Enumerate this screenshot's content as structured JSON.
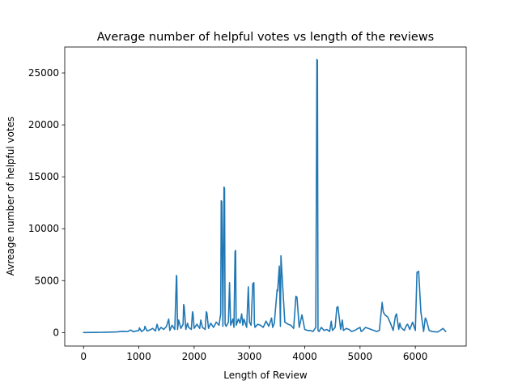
{
  "chart_data": {
    "type": "line",
    "title": "Average number of helpful votes vs length of the reviews",
    "xlabel": "Length of Review",
    "ylabel": "Avreage number of helpful votes",
    "xlim": [
      -340,
      6920
    ],
    "ylim": [
      -1300,
      27500
    ],
    "xticks": [
      0,
      1000,
      2000,
      3000,
      4000,
      5000,
      6000
    ],
    "xtick_labels": [
      "0",
      "1000",
      "2000",
      "3000",
      "4000",
      "5000",
      "6000"
    ],
    "yticks": [
      0,
      5000,
      10000,
      15000,
      20000,
      25000
    ],
    "ytick_labels": [
      "0",
      "5000",
      "10000",
      "15000",
      "20000",
      "25000"
    ],
    "grid": false,
    "legend": false,
    "colors": {
      "line": "#1f77b4"
    },
    "series": [
      {
        "x": [
          0,
          200,
          400,
          600,
          700,
          800,
          850,
          900,
          950,
          1000,
          1010,
          1050,
          1100,
          1110,
          1150,
          1200,
          1250,
          1300,
          1330,
          1360,
          1400,
          1450,
          1500,
          1540,
          1560,
          1600,
          1650,
          1680,
          1685,
          1700,
          1720,
          1760,
          1800,
          1810,
          1820,
          1850,
          1880,
          1900,
          1950,
          1970,
          1980,
          2000,
          2050,
          2100,
          2120,
          2150,
          2200,
          2220,
          2230,
          2260,
          2300,
          2350,
          2400,
          2450,
          2480,
          2490,
          2500,
          2520,
          2540,
          2550,
          2560,
          2580,
          2620,
          2640,
          2660,
          2700,
          2720,
          2740,
          2750,
          2760,
          2800,
          2830,
          2860,
          2880,
          2900,
          2950,
          2980,
          3000,
          3030,
          3060,
          3080,
          3090,
          3100,
          3150,
          3200,
          3250,
          3300,
          3350,
          3400,
          3420,
          3450,
          3500,
          3510,
          3540,
          3560,
          3570,
          3600,
          3640,
          3700,
          3750,
          3800,
          3840,
          3860,
          3900,
          3950,
          4000,
          4050,
          4100,
          4150,
          4200,
          4220,
          4230,
          4240,
          4260,
          4300,
          4350,
          4400,
          4450,
          4480,
          4500,
          4550,
          4580,
          4600,
          4650,
          4680,
          4700,
          4750,
          4800,
          4850,
          4900,
          5000,
          5020,
          5050,
          5100,
          5200,
          5300,
          5350,
          5400,
          5420,
          5450,
          5500,
          5550,
          5600,
          5640,
          5660,
          5700,
          5720,
          5740,
          5800,
          5840,
          5860,
          5900,
          5950,
          6000,
          6030,
          6060,
          6100,
          6150,
          6180,
          6200,
          6250,
          6300,
          6400,
          6450,
          6500,
          6550
        ],
        "y": [
          0,
          10,
          30,
          60,
          120,
          100,
          250,
          80,
          150,
          200,
          450,
          100,
          300,
          600,
          150,
          250,
          400,
          150,
          800,
          200,
          500,
          300,
          600,
          1300,
          200,
          700,
          300,
          5500,
          5400,
          300,
          1200,
          400,
          800,
          2700,
          2500,
          300,
          900,
          500,
          300,
          2000,
          1800,
          400,
          800,
          400,
          1200,
          500,
          300,
          2000,
          1900,
          400,
          900,
          500,
          1000,
          700,
          1800,
          12700,
          12600,
          600,
          14000,
          13900,
          800,
          600,
          1000,
          4800,
          700,
          1300,
          500,
          7800,
          7900,
          700,
          1300,
          900,
          1800,
          700,
          1300,
          500,
          4400,
          1000,
          700,
          4700,
          4800,
          900,
          500,
          800,
          700,
          500,
          1100,
          600,
          1400,
          500,
          900,
          4100,
          4000,
          6400,
          600,
          7400,
          4600,
          1000,
          800,
          700,
          400,
          3500,
          3400,
          500,
          1700,
          300,
          200,
          200,
          100,
          500,
          26300,
          26200,
          200,
          100,
          500,
          200,
          300,
          100,
          1100,
          200,
          500,
          2400,
          2500,
          300,
          1200,
          200,
          400,
          300,
          100,
          200,
          500,
          100,
          200,
          500,
          300,
          100,
          200,
          2900,
          2000,
          1700,
          1500,
          900,
          200,
          1600,
          1800,
          300,
          900,
          500,
          200,
          700,
          800,
          300,
          1000,
          200,
          5800,
          5900,
          2000,
          100,
          1400,
          1200,
          200,
          100,
          50,
          200,
          400,
          100
        ]
      }
    ]
  }
}
